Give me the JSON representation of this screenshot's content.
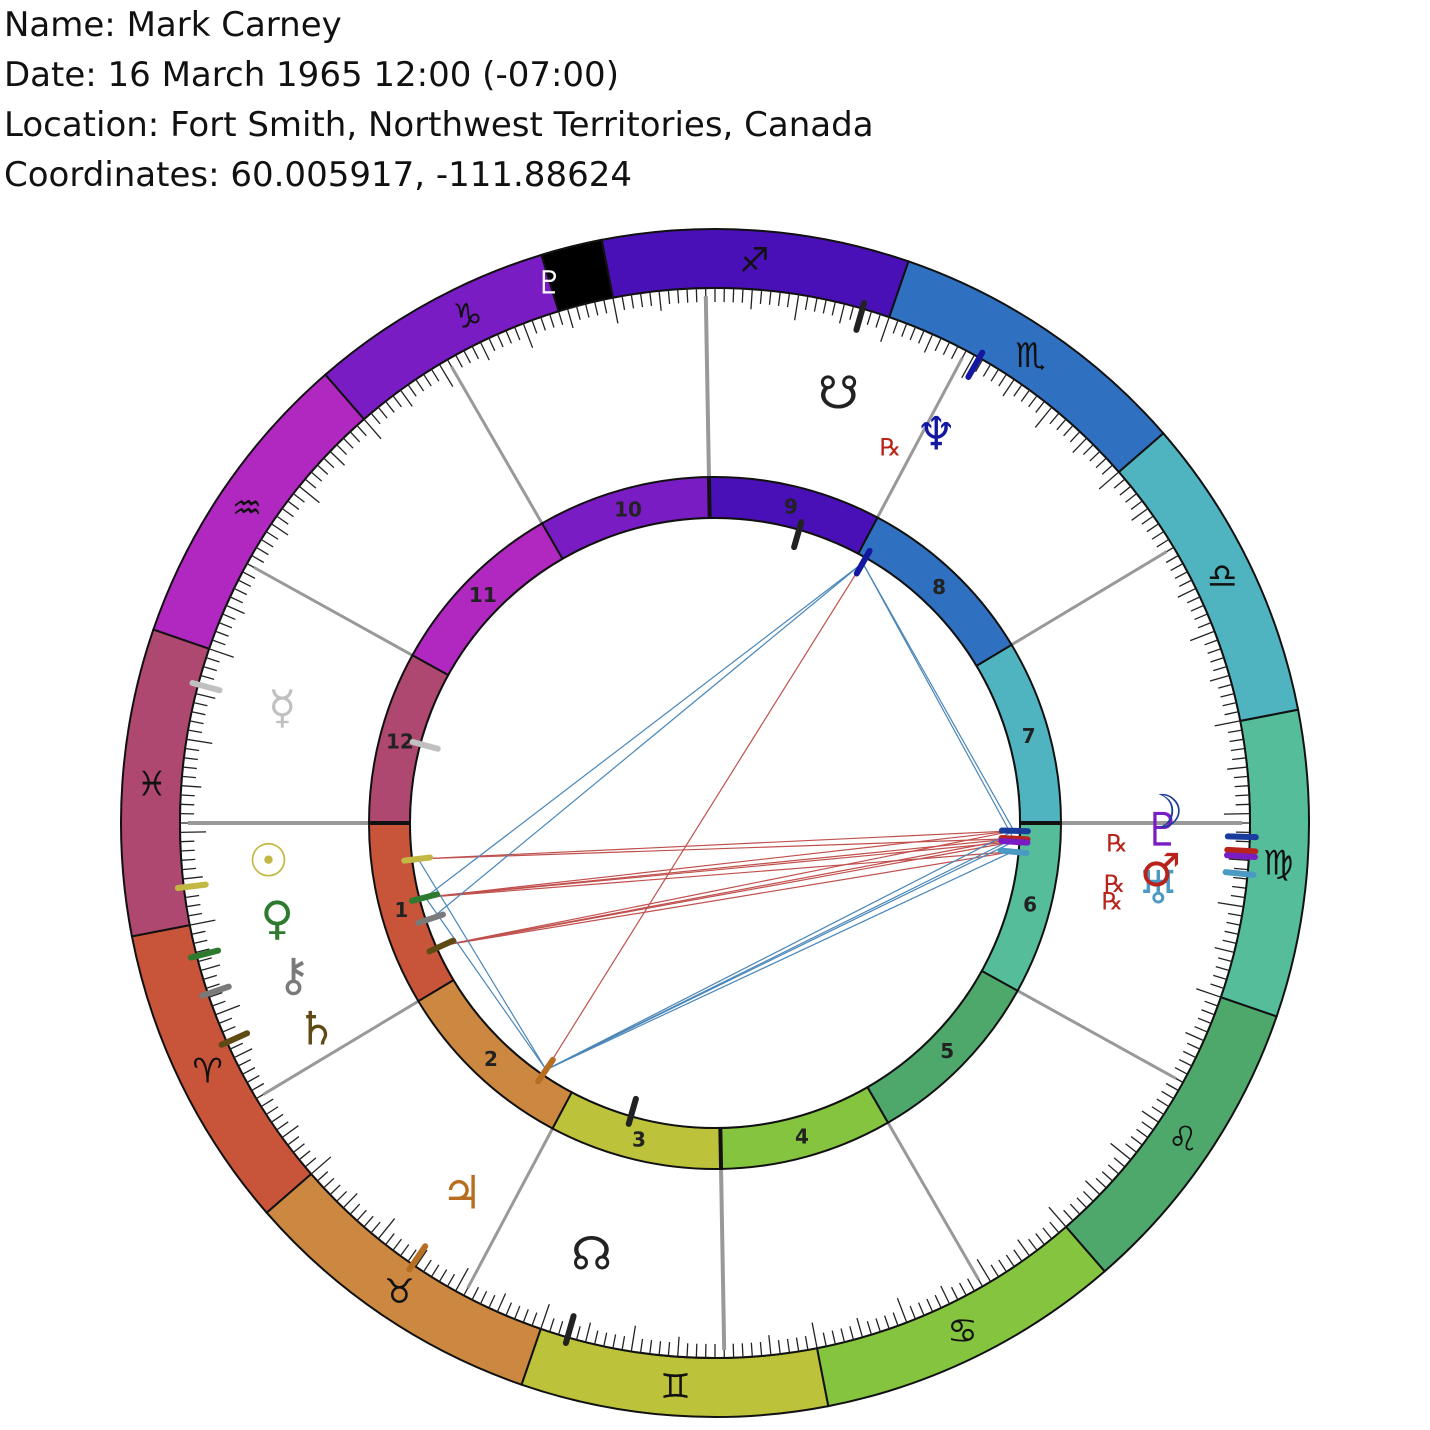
{
  "header": {
    "name_line": "Name: Mark Carney",
    "date_line": "Date: 16 March 1965 12:00 (-07:00)",
    "location_line": "Location: Fort Smith, Northwest Territories, Canada",
    "coords_line": "Coordinates: 60.005917, -111.88624"
  },
  "zodiac": {
    "ascendant_longitude": 349.0,
    "signs": [
      {
        "key": "aries",
        "glyph": "♈",
        "color": "#C8543A"
      },
      {
        "key": "taurus",
        "glyph": "♉",
        "color": "#CC8840"
      },
      {
        "key": "gemini",
        "glyph": "♊",
        "color": "#BCC23A"
      },
      {
        "key": "cancer",
        "glyph": "♋",
        "color": "#84C43E"
      },
      {
        "key": "leo",
        "glyph": "♌",
        "color": "#4EA86C"
      },
      {
        "key": "virgo",
        "glyph": "♍",
        "color": "#55BD9A"
      },
      {
        "key": "libra",
        "glyph": "♎",
        "color": "#50B4C0"
      },
      {
        "key": "scorpio",
        "glyph": "♏",
        "color": "#3070C0"
      },
      {
        "key": "sagittarius",
        "glyph": "♐",
        "color": "#4A10B8"
      },
      {
        "key": "capricorn",
        "glyph": "♑",
        "color": "#7A1CC4"
      },
      {
        "key": "aquarius",
        "glyph": "♒",
        "color": "#B028C0"
      },
      {
        "key": "pisces",
        "glyph": "♓",
        "color": "#AE4870"
      }
    ],
    "black_segment": {
      "start": 270.0,
      "end": 276.0,
      "glyph": "♇"
    }
  },
  "houses": [
    {
      "number": "1",
      "cusp": 349.0,
      "color": "#C8543A"
    },
    {
      "number": "2",
      "cusp": 20.0,
      "color": "#CC8840"
    },
    {
      "number": "3",
      "cusp": 51.0,
      "color": "#BCC23A"
    },
    {
      "number": "4",
      "cusp": 80.0,
      "color": "#84C43E"
    },
    {
      "number": "5",
      "cusp": 109.0,
      "color": "#4EA86C"
    },
    {
      "number": "6",
      "cusp": 140.0,
      "color": "#55BD9A"
    },
    {
      "number": "7",
      "cusp": 169.0,
      "color": "#50B4C0"
    },
    {
      "number": "8",
      "cusp": 200.0,
      "color": "#3070C0"
    },
    {
      "number": "9",
      "cusp": 231.0,
      "color": "#4A10B8"
    },
    {
      "number": "10",
      "cusp": 260.0,
      "color": "#7A1CC4"
    },
    {
      "number": "11",
      "cusp": 289.0,
      "color": "#B028C0"
    },
    {
      "number": "12",
      "cusp": 320.0,
      "color": "#AE4870"
    }
  ],
  "planets": [
    {
      "key": "sun",
      "glyph": "☉",
      "longitude": 355.9,
      "color": "#C4B844",
      "retro": false
    },
    {
      "key": "moon",
      "glyph": "☽",
      "longitude": 167.5,
      "color": "#1A3C9C",
      "retro": false
    },
    {
      "key": "mercury",
      "glyph": "☿",
      "longitude": 334.0,
      "color": "#C0C0C0",
      "retro": false
    },
    {
      "key": "venus",
      "glyph": "♀",
      "longitude": 3.4,
      "color": "#2E7A2E",
      "retro": false
    },
    {
      "key": "mars",
      "glyph": "♂",
      "longitude": 166.0,
      "color": "#B8241C",
      "retro": true
    },
    {
      "key": "jupiter",
      "glyph": "♃",
      "longitude": 44.6,
      "color": "#B86E20",
      "retro": false
    },
    {
      "key": "saturn",
      "glyph": "♄",
      "longitude": 13.2,
      "color": "#5E4A12",
      "retro": false
    },
    {
      "key": "uranus",
      "glyph": "♅",
      "longitude": 163.5,
      "color": "#4A9AC4",
      "retro": true
    },
    {
      "key": "neptune",
      "glyph": "♆",
      "longitude": 229.4,
      "color": "#1418A0",
      "retro": true
    },
    {
      "key": "pluto",
      "glyph": "♇",
      "longitude": 165.4,
      "color": "#7A1CC4",
      "retro": true
    },
    {
      "key": "chiron",
      "glyph": "⚷",
      "longitude": 7.6,
      "color": "#7A7A7A",
      "retro": false
    },
    {
      "key": "north_node",
      "glyph": "☊",
      "longitude": 63.0,
      "color": "#222222",
      "retro": false
    },
    {
      "key": "south_node",
      "glyph": "☋",
      "longitude": 243.0,
      "color": "#222222",
      "retro": false
    }
  ],
  "retro_symbol": "℞",
  "aspects": [
    {
      "from": 13.2,
      "to": 167.5,
      "color": "#C0504D"
    },
    {
      "from": 13.2,
      "to": 166.0,
      "color": "#C0504D"
    },
    {
      "from": 13.2,
      "to": 165.4,
      "color": "#C0504D"
    },
    {
      "from": 13.2,
      "to": 163.5,
      "color": "#C0504D"
    },
    {
      "from": 3.4,
      "to": 167.5,
      "color": "#C0504D"
    },
    {
      "from": 3.4,
      "to": 166.0,
      "color": "#C0504D"
    },
    {
      "from": 3.4,
      "to": 165.4,
      "color": "#C0504D"
    },
    {
      "from": 3.4,
      "to": 163.5,
      "color": "#C0504D"
    },
    {
      "from": 355.9,
      "to": 167.5,
      "color": "#C0504D"
    },
    {
      "from": 355.9,
      "to": 166.0,
      "color": "#C0504D"
    },
    {
      "from": 3.4,
      "to": 229.4,
      "color": "#4A86B8"
    },
    {
      "from": 7.6,
      "to": 229.4,
      "color": "#4A86B8"
    },
    {
      "from": 3.4,
      "to": 44.6,
      "color": "#4A86B8"
    },
    {
      "from": 355.9,
      "to": 44.6,
      "color": "#4A86B8"
    },
    {
      "from": 44.6,
      "to": 229.4,
      "color": "#C0504D"
    },
    {
      "from": 44.6,
      "to": 167.5,
      "color": "#4A86B8"
    },
    {
      "from": 44.6,
      "to": 166.0,
      "color": "#4A86B8"
    },
    {
      "from": 44.6,
      "to": 165.4,
      "color": "#4A86B8"
    },
    {
      "from": 44.6,
      "to": 163.5,
      "color": "#4A86B8"
    },
    {
      "from": 229.4,
      "to": 167.5,
      "color": "#4A86B8"
    },
    {
      "from": 229.4,
      "to": 166.0,
      "color": "#4A86B8"
    }
  ]
}
